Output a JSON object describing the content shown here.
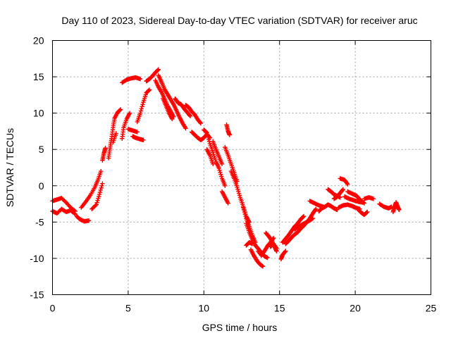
{
  "chart_data": {
    "type": "scatter",
    "title": "Day 110 of 2023, Sidereal Day-to-day VTEC variation (SDTVAR) for receiver aruc",
    "xlabel": "GPS time / hours",
    "ylabel": "SDTVAR / TECUs",
    "xlim": [
      0,
      25
    ],
    "ylim": [
      -15,
      20
    ],
    "xticks": [
      0,
      5,
      10,
      15,
      20,
      25
    ],
    "yticks": [
      -15,
      -10,
      -5,
      0,
      5,
      10,
      15,
      20
    ],
    "grid": true,
    "marker": "+",
    "color": "#ff0000",
    "series": [
      {
        "name": "SDTVAR",
        "segments": [
          [
            [
              0.0,
              -3.5
            ],
            [
              0.3,
              -3.8
            ],
            [
              0.6,
              -3.2
            ],
            [
              0.9,
              -3.6
            ],
            [
              1.2,
              -3.4
            ],
            [
              1.5,
              -3.9
            ]
          ],
          [
            [
              0.0,
              -2.1
            ],
            [
              0.3,
              -1.9
            ],
            [
              0.6,
              -1.7
            ],
            [
              0.9,
              -2.3
            ],
            [
              1.2,
              -3.0
            ],
            [
              1.5,
              -3.5
            ]
          ],
          [
            [
              1.6,
              -4.2
            ],
            [
              1.8,
              -4.6
            ],
            [
              2.1,
              -4.9
            ],
            [
              2.4,
              -4.8
            ]
          ],
          [
            [
              1.9,
              -3.0
            ],
            [
              2.2,
              -2.2
            ],
            [
              2.5,
              -1.3
            ],
            [
              2.8,
              -0.2
            ],
            [
              3.0,
              0.8
            ],
            [
              3.2,
              2.0
            ]
          ],
          [
            [
              2.6,
              -3.2
            ],
            [
              2.9,
              -2.6
            ],
            [
              3.1,
              -1.2
            ],
            [
              3.3,
              0.3
            ]
          ],
          [
            [
              3.3,
              3.5
            ],
            [
              3.4,
              4.5
            ],
            [
              3.5,
              5.2
            ]
          ],
          [
            [
              3.7,
              3.8
            ],
            [
              3.8,
              5.2
            ],
            [
              3.9,
              6.5
            ],
            [
              4.0,
              8.0
            ],
            [
              4.1,
              9.3
            ],
            [
              4.3,
              10.1
            ],
            [
              4.5,
              10.5
            ]
          ],
          [
            [
              4.0,
              6.0
            ],
            [
              4.2,
              7.2
            ]
          ],
          [
            [
              4.6,
              6.5
            ],
            [
              4.7,
              8.0
            ],
            [
              4.9,
              9.2
            ],
            [
              5.1,
              10.0
            ]
          ],
          [
            [
              4.6,
              14.2
            ],
            [
              4.9,
              14.6
            ],
            [
              5.2,
              14.8
            ],
            [
              5.5,
              14.9
            ],
            [
              5.8,
              14.7
            ]
          ],
          [
            [
              5.0,
              7.8
            ],
            [
              5.3,
              7.6
            ],
            [
              5.6,
              7.4
            ]
          ],
          [
            [
              5.3,
              6.8
            ],
            [
              5.5,
              6.6
            ],
            [
              5.8,
              6.4
            ],
            [
              6.0,
              6.3
            ]
          ],
          [
            [
              5.6,
              8.8
            ],
            [
              5.8,
              10.0
            ],
            [
              6.0,
              11.5
            ],
            [
              6.2,
              12.8
            ],
            [
              6.4,
              13.2
            ]
          ],
          [
            [
              6.2,
              14.4
            ],
            [
              6.4,
              14.7
            ],
            [
              6.6,
              15.1
            ],
            [
              6.8,
              15.6
            ],
            [
              7.0,
              16.0
            ]
          ],
          [
            [
              6.8,
              14.5
            ],
            [
              7.0,
              13.6
            ],
            [
              7.2,
              12.9
            ],
            [
              7.4,
              12.0
            ],
            [
              7.6,
              11.0
            ],
            [
              7.8,
              10.3
            ],
            [
              8.0,
              9.5
            ]
          ],
          [
            [
              7.0,
              15.2
            ],
            [
              7.2,
              14.3
            ],
            [
              7.4,
              13.3
            ],
            [
              7.6,
              12.6
            ],
            [
              7.8,
              11.9
            ],
            [
              8.0,
              11.2
            ],
            [
              8.2,
              10.3
            ],
            [
              8.4,
              9.4
            ],
            [
              8.6,
              8.6
            ],
            [
              8.8,
              7.9
            ]
          ],
          [
            [
              7.3,
              12.0
            ],
            [
              7.5,
              11.0
            ],
            [
              7.7,
              10.0
            ],
            [
              7.9,
              9.2
            ]
          ],
          [
            [
              8.1,
              12.0
            ],
            [
              8.3,
              11.4
            ],
            [
              8.5,
              11.2
            ],
            [
              8.7,
              10.6
            ],
            [
              8.9,
              10.1
            ],
            [
              9.1,
              9.6
            ]
          ],
          [
            [
              8.8,
              11.1
            ],
            [
              9.0,
              10.8
            ],
            [
              9.2,
              10.2
            ],
            [
              9.4,
              9.8
            ],
            [
              9.6,
              9.1
            ],
            [
              9.8,
              8.6
            ]
          ],
          [
            [
              9.2,
              7.4
            ],
            [
              9.4,
              7.0
            ],
            [
              9.6,
              6.6
            ],
            [
              9.8,
              6.3
            ],
            [
              10.0,
              6.6
            ],
            [
              10.2,
              7.1
            ],
            [
              10.4,
              6.6
            ]
          ],
          [
            [
              10.0,
              7.7
            ],
            [
              10.2,
              7.3
            ],
            [
              10.4,
              5.8
            ],
            [
              10.6,
              4.6
            ],
            [
              10.8,
              3.3
            ],
            [
              11.0,
              2.4
            ],
            [
              11.2,
              1.0
            ],
            [
              11.4,
              0.0
            ]
          ],
          [
            [
              10.2,
              5.0
            ],
            [
              10.4,
              4.2
            ],
            [
              10.6,
              3.0
            ]
          ],
          [
            [
              10.6,
              6.1
            ],
            [
              10.8,
              5.0
            ],
            [
              11.0,
              4.0
            ],
            [
              11.2,
              3.0
            ]
          ],
          [
            [
              11.2,
              -0.8
            ],
            [
              11.4,
              -1.6
            ],
            [
              11.6,
              -2.4
            ]
          ],
          [
            [
              11.4,
              5.3
            ],
            [
              11.6,
              4.2
            ],
            [
              11.8,
              3.0
            ],
            [
              12.0,
              1.8
            ],
            [
              12.2,
              0.6
            ]
          ],
          [
            [
              11.5,
              8.4
            ],
            [
              11.6,
              7.5
            ],
            [
              11.7,
              7.0
            ]
          ],
          [
            [
              11.8,
              2.0
            ],
            [
              12.0,
              1.0
            ],
            [
              12.2,
              -0.2
            ],
            [
              12.4,
              -1.6
            ],
            [
              12.6,
              -2.8
            ],
            [
              12.8,
              -4.2
            ],
            [
              13.0,
              -5.0
            ]
          ],
          [
            [
              12.6,
              -3.0
            ],
            [
              12.8,
              -4.5
            ],
            [
              13.0,
              -5.6
            ],
            [
              13.2,
              -6.8
            ],
            [
              13.4,
              -7.8
            ]
          ],
          [
            [
              12.8,
              -5.2
            ],
            [
              13.0,
              -6.4
            ],
            [
              13.2,
              -7.4
            ],
            [
              13.4,
              -8.2
            ],
            [
              13.6,
              -8.7
            ],
            [
              13.8,
              -9.2
            ],
            [
              14.0,
              -9.7
            ],
            [
              14.2,
              -9.9
            ]
          ],
          [
            [
              12.8,
              -8.2
            ],
            [
              13.0,
              -7.8
            ],
            [
              13.2,
              -8.0
            ]
          ],
          [
            [
              13.1,
              -8.8
            ],
            [
              13.3,
              -9.6
            ],
            [
              13.5,
              -10.3
            ],
            [
              13.7,
              -10.8
            ],
            [
              13.9,
              -11.1
            ]
          ],
          [
            [
              13.6,
              -9.0
            ],
            [
              13.8,
              -9.6
            ],
            [
              14.0,
              -9.0
            ],
            [
              14.2,
              -8.3
            ],
            [
              14.4,
              -7.8
            ],
            [
              14.6,
              -7.2
            ]
          ],
          [
            [
              14.1,
              -6.5
            ],
            [
              14.3,
              -7.0
            ],
            [
              14.5,
              -7.6
            ],
            [
              14.7,
              -8.5
            ],
            [
              14.8,
              -9.0
            ]
          ],
          [
            [
              14.4,
              -8.4
            ],
            [
              14.6,
              -8.0
            ],
            [
              14.8,
              -8.6
            ]
          ],
          [
            [
              15.1,
              -10.1
            ],
            [
              15.2,
              -9.5
            ],
            [
              15.4,
              -9.0
            ]
          ],
          [
            [
              15.2,
              -7.8
            ],
            [
              15.4,
              -7.3
            ],
            [
              15.6,
              -6.8
            ],
            [
              15.8,
              -6.2
            ],
            [
              16.0,
              -5.6
            ],
            [
              16.2,
              -5.2
            ],
            [
              16.4,
              -4.6
            ],
            [
              16.6,
              -4.2
            ]
          ],
          [
            [
              15.4,
              -8.0
            ],
            [
              15.6,
              -7.6
            ],
            [
              15.8,
              -7.1
            ],
            [
              16.0,
              -6.7
            ],
            [
              16.2,
              -6.4
            ],
            [
              16.4,
              -5.9
            ],
            [
              16.6,
              -5.5
            ],
            [
              16.8,
              -5.0
            ],
            [
              17.0,
              -4.5
            ],
            [
              17.2,
              -3.8
            ],
            [
              17.4,
              -3.2
            ]
          ],
          [
            [
              16.0,
              -6.0
            ],
            [
              16.3,
              -5.6
            ],
            [
              16.6,
              -5.2
            ],
            [
              16.9,
              -4.9
            ],
            [
              17.2,
              -4.5
            ]
          ],
          [
            [
              17.0,
              -2.1
            ],
            [
              17.3,
              -2.4
            ],
            [
              17.6,
              -2.7
            ],
            [
              17.9,
              -2.9
            ]
          ],
          [
            [
              17.6,
              -3.5
            ],
            [
              17.8,
              -3.1
            ],
            [
              18.0,
              -2.9
            ],
            [
              18.2,
              -2.6
            ],
            [
              18.4,
              -2.8
            ],
            [
              18.6,
              -3.1
            ],
            [
              18.8,
              -3.3
            ]
          ],
          [
            [
              18.2,
              -0.5
            ],
            [
              18.4,
              -0.8
            ],
            [
              18.6,
              -1.2
            ],
            [
              18.8,
              -1.4
            ],
            [
              19.0,
              -1.6
            ]
          ],
          [
            [
              18.6,
              -1.8
            ],
            [
              18.8,
              -1.5
            ],
            [
              19.0,
              -1.0
            ],
            [
              19.2,
              -0.5
            ]
          ],
          [
            [
              18.9,
              -3.0
            ],
            [
              19.2,
              -2.7
            ],
            [
              19.5,
              -2.6
            ],
            [
              19.8,
              -2.8
            ],
            [
              20.0,
              -3.0
            ],
            [
              20.3,
              -3.2
            ]
          ],
          [
            [
              19.0,
              1.0
            ],
            [
              19.3,
              0.8
            ],
            [
              19.5,
              0.2
            ]
          ],
          [
            [
              19.3,
              -1.5
            ],
            [
              19.6,
              -1.8
            ],
            [
              19.9,
              -2.0
            ],
            [
              20.2,
              -2.2
            ],
            [
              20.5,
              -2.3
            ]
          ],
          [
            [
              19.5,
              -0.8
            ],
            [
              19.8,
              -1.1
            ],
            [
              20.1,
              -1.4
            ],
            [
              20.3,
              -1.9
            ],
            [
              20.6,
              -2.4
            ]
          ],
          [
            [
              20.2,
              -3.3
            ],
            [
              20.4,
              -3.7
            ],
            [
              20.6,
              -4.0
            ],
            [
              20.8,
              -3.6
            ]
          ],
          [
            [
              20.6,
              -1.8
            ],
            [
              20.9,
              -1.6
            ],
            [
              21.2,
              -1.8
            ]
          ],
          [
            [
              21.6,
              -2.5
            ],
            [
              21.9,
              -2.9
            ],
            [
              22.2,
              -3.1
            ],
            [
              22.4,
              -2.9
            ]
          ],
          [
            [
              22.5,
              -3.6
            ],
            [
              22.6,
              -2.9
            ],
            [
              22.7,
              -2.3
            ],
            [
              22.8,
              -2.9
            ],
            [
              22.9,
              -3.3
            ]
          ]
        ]
      }
    ]
  }
}
